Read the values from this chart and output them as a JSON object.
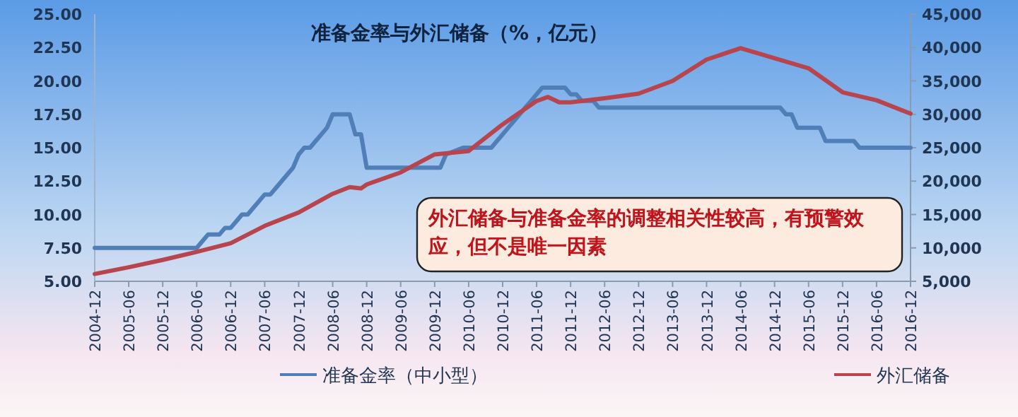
{
  "chart_data": {
    "type": "line",
    "title": "准备金率与外汇储备（%，亿元）",
    "annotations": [
      "外汇储备与准备金率的调整相关性较高，有预警效应，但不是唯一因素"
    ],
    "xlim": [
      "2004-12",
      "2016-12"
    ],
    "xticks": [
      "2004-12",
      "2005-06",
      "2005-12",
      "2006-06",
      "2006-12",
      "2007-06",
      "2007-12",
      "2008-06",
      "2008-12",
      "2009-06",
      "2009-12",
      "2010-06",
      "2010-12",
      "2011-06",
      "2011-12",
      "2012-06",
      "2012-12",
      "2013-06",
      "2013-12",
      "2014-06",
      "2014-12",
      "2015-06",
      "2015-12",
      "2016-06",
      "2016-12"
    ],
    "ylim": [
      5,
      25
    ],
    "yticks": [
      {
        "value": 5,
        "label": "5.00"
      },
      {
        "value": 7.5,
        "label": "7.50"
      },
      {
        "value": 10,
        "label": "10.00"
      },
      {
        "value": 12.5,
        "label": "12.50"
      },
      {
        "value": 15,
        "label": "15.00"
      },
      {
        "value": 17.5,
        "label": "17.50"
      },
      {
        "value": 20,
        "label": "20.00"
      },
      {
        "value": 22.5,
        "label": "22.50"
      },
      {
        "value": 25,
        "label": "25.00"
      }
    ],
    "y2lim": [
      5000,
      45000
    ],
    "y2ticks": [
      {
        "value": 5000,
        "label": "5,000"
      },
      {
        "value": 10000,
        "label": "10,000"
      },
      {
        "value": 15000,
        "label": "15,000"
      },
      {
        "value": 20000,
        "label": "20,000"
      },
      {
        "value": 25000,
        "label": "25,000"
      },
      {
        "value": 30000,
        "label": "30,000"
      },
      {
        "value": 35000,
        "label": "35,000"
      },
      {
        "value": 40000,
        "label": "40,000"
      },
      {
        "value": 45000,
        "label": "45,000"
      }
    ],
    "legend": "bottom",
    "series": [
      {
        "name": "准备金率（中小型）",
        "color": "#4f7fb6",
        "x": [
          "2004-12",
          "2006-06",
          "2006-07",
          "2006-08",
          "2006-10",
          "2006-11",
          "2006-12",
          "2007-01",
          "2007-02",
          "2007-03",
          "2007-04",
          "2007-05",
          "2007-06",
          "2007-07",
          "2007-08",
          "2007-09",
          "2007-10",
          "2007-11",
          "2007-12",
          "2008-01",
          "2008-02",
          "2008-03",
          "2008-04",
          "2008-05",
          "2008-06",
          "2008-09",
          "2008-10",
          "2008-11",
          "2008-12",
          "2010-01",
          "2010-02",
          "2010-05",
          "2010-10",
          "2010-11",
          "2010-12",
          "2011-01",
          "2011-02",
          "2011-03",
          "2011-04",
          "2011-05",
          "2011-06",
          "2011-07",
          "2011-11",
          "2011-12",
          "2012-01",
          "2012-02",
          "2012-04",
          "2012-05",
          "2015-01",
          "2015-02",
          "2015-03",
          "2015-04",
          "2015-08",
          "2015-09",
          "2016-02",
          "2016-03",
          "2016-12"
        ],
        "values": [
          7.5,
          7.5,
          8.0,
          8.5,
          8.5,
          9.0,
          9.0,
          9.5,
          10.0,
          10.0,
          10.5,
          11.0,
          11.5,
          11.5,
          12.0,
          12.5,
          13.0,
          13.5,
          14.5,
          15.0,
          15.0,
          15.5,
          16.0,
          16.5,
          17.5,
          17.5,
          16.0,
          16.0,
          13.5,
          13.5,
          14.5,
          15.0,
          15.0,
          15.5,
          16.0,
          16.5,
          17.0,
          17.5,
          18.0,
          18.5,
          19.0,
          19.5,
          19.5,
          19.0,
          19.0,
          18.5,
          18.5,
          18.0,
          18.0,
          17.5,
          17.5,
          16.5,
          16.5,
          15.5,
          15.5,
          15.0,
          15.0
        ]
      },
      {
        "name": "外汇储备",
        "color": "#b8454d",
        "axis": "y2",
        "x": [
          "2004-12",
          "2005-06",
          "2005-12",
          "2006-06",
          "2006-12",
          "2007-06",
          "2007-12",
          "2008-06",
          "2008-09",
          "2008-11",
          "2008-12",
          "2009-06",
          "2009-12",
          "2010-06",
          "2010-12",
          "2011-06",
          "2011-08",
          "2011-10",
          "2011-12",
          "2012-06",
          "2012-12",
          "2013-06",
          "2013-12",
          "2014-06",
          "2014-12",
          "2015-06",
          "2015-12",
          "2016-06",
          "2016-12"
        ],
        "values": [
          6100,
          7100,
          8200,
          9400,
          10700,
          13300,
          15300,
          18100,
          19100,
          18900,
          19500,
          21300,
          24000,
          24500,
          28500,
          32000,
          32600,
          31800,
          31800,
          32400,
          33100,
          35000,
          38200,
          39900,
          38400,
          36900,
          33300,
          32100,
          30100
        ]
      }
    ]
  }
}
